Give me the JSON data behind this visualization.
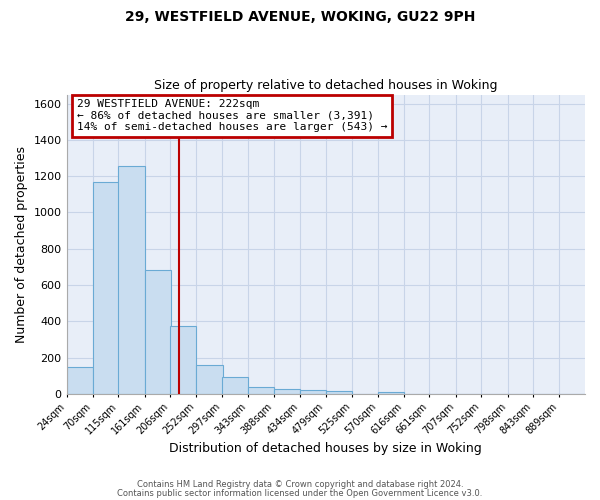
{
  "title": "29, WESTFIELD AVENUE, WOKING, GU22 9PH",
  "subtitle": "Size of property relative to detached houses in Woking",
  "xlabel": "Distribution of detached houses by size in Woking",
  "ylabel": "Number of detached properties",
  "bar_color": "#c9ddf0",
  "bar_edge_color": "#6aaad4",
  "background_color": "#ffffff",
  "plot_bg_color": "#e8eef8",
  "grid_color": "#c8d4e8",
  "annotation_box_edge": "#bb0000",
  "annotation_line_color": "#bb0000",
  "property_value": 222,
  "annotation_title": "29 WESTFIELD AVENUE: 222sqm",
  "annotation_line1": "← 86% of detached houses are smaller (3,391)",
  "annotation_line2": "14% of semi-detached houses are larger (543) →",
  "bin_edges": [
    24,
    70,
    115,
    161,
    206,
    252,
    297,
    343,
    388,
    434,
    479,
    525,
    570,
    616,
    661,
    707,
    752,
    798,
    843,
    889,
    934
  ],
  "bin_counts": [
    150,
    1170,
    1255,
    685,
    375,
    160,
    90,
    40,
    25,
    20,
    15,
    0,
    10,
    0,
    0,
    0,
    0,
    0,
    0,
    0
  ],
  "ylim": [
    0,
    1650
  ],
  "yticks": [
    0,
    200,
    400,
    600,
    800,
    1000,
    1200,
    1400,
    1600
  ],
  "footer_line1": "Contains HM Land Registry data © Crown copyright and database right 2024.",
  "footer_line2": "Contains public sector information licensed under the Open Government Licence v3.0."
}
